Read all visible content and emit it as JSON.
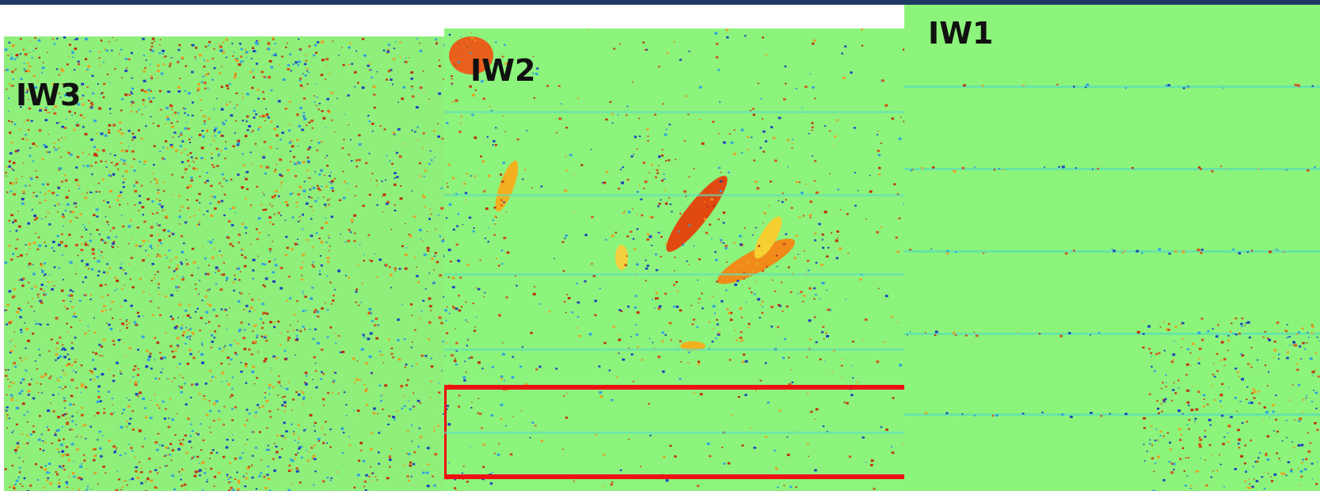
{
  "panels": [
    {
      "label": "IW3"
    },
    {
      "label": "IW2"
    },
    {
      "label": "IW1"
    }
  ]
}
